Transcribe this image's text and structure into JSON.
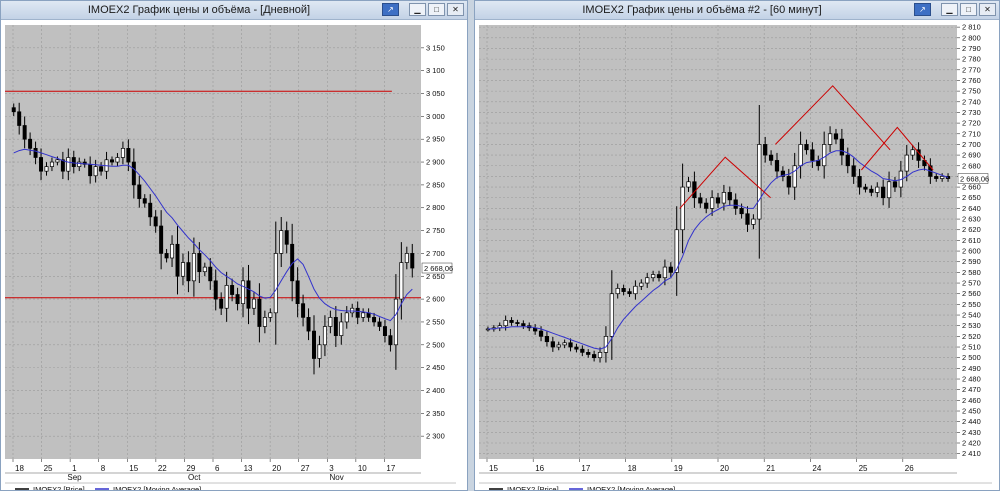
{
  "windows": [
    {
      "title": "IMOEX2 График цены и объёма - [Дневной]",
      "price_label": "2 668,06",
      "legend": [
        {
          "label": "IMOEX2 [Price]",
          "color": "#000000"
        },
        {
          "label": "IMOEX2 [Moving Average]",
          "color": "#3333cc"
        }
      ],
      "x_labels": [
        "18",
        "25",
        "1",
        "8",
        "15",
        "22",
        "29",
        "6",
        "13",
        "20",
        "27",
        "3",
        "10",
        "17"
      ],
      "month_labels": [
        "Sep",
        "Oct",
        "Nov"
      ]
    },
    {
      "title": "IMOEX2 График цены и объёма #2 - [60 минут]",
      "price_label": "2 668,06",
      "legend": [
        {
          "label": "IMOEX2 [Price]",
          "color": "#000000"
        },
        {
          "label": "IMOEX2 [Moving Average]",
          "color": "#3333cc"
        }
      ],
      "x_labels": [
        "15",
        "16",
        "17",
        "18",
        "19",
        "20",
        "21",
        "24",
        "25",
        "26"
      ]
    }
  ],
  "chart_data": [
    {
      "type": "candlestick",
      "timeframe": "Дневной",
      "ylim": [
        2250,
        3200
      ],
      "y_ticks": [
        "2 300",
        "2 350",
        "2 400",
        "2 450",
        "2 500",
        "2 550",
        "2 600",
        "2 650",
        "2 700",
        "2 750",
        "2 800",
        "2 850",
        "2 900",
        "2 950",
        "3 000",
        "3 050",
        "3 100",
        "3 150"
      ],
      "horizontal_lines": [
        {
          "value": 3055,
          "color": "#cc0000"
        },
        {
          "value": 2603,
          "color": "#cc0000"
        }
      ],
      "last_price": 2668.06,
      "series": [
        {
          "name": "IMOEX2 [Price]",
          "close": [
            3010,
            2980,
            2950,
            2930,
            2910,
            2880,
            2890,
            2900,
            2905,
            2880,
            2910,
            2890,
            2900,
            2895,
            2870,
            2890,
            2880,
            2905,
            2900,
            2910,
            2930,
            2900,
            2850,
            2820,
            2810,
            2780,
            2760,
            2700,
            2690,
            2720,
            2650,
            2680,
            2640,
            2700,
            2660,
            2670,
            2640,
            2600,
            2580,
            2630,
            2610,
            2590,
            2640,
            2580,
            2600,
            2540,
            2560,
            2570,
            2700,
            2750,
            2720,
            2640,
            2590,
            2560,
            2530,
            2470,
            2500,
            2540,
            2560,
            2520,
            2550,
            2570,
            2580,
            2560,
            2570,
            2560,
            2550,
            2540,
            2520,
            2500,
            2600,
            2680,
            2700,
            2668
          ]
        },
        {
          "name": "IMOEX2 [Moving Average]",
          "values": [
            2920,
            2925,
            2928,
            2926,
            2924,
            2920,
            2916,
            2912,
            2908,
            2903,
            2900,
            2898,
            2897,
            2896,
            2895,
            2894,
            2893,
            2892,
            2891,
            2891,
            2893,
            2893,
            2885,
            2872,
            2858,
            2842,
            2826,
            2808,
            2790,
            2778,
            2762,
            2748,
            2734,
            2722,
            2708,
            2697,
            2684,
            2670,
            2658,
            2650,
            2642,
            2633,
            2628,
            2622,
            2616,
            2607,
            2602,
            2604,
            2620,
            2640,
            2660,
            2678,
            2688,
            2676,
            2650,
            2622,
            2602,
            2590,
            2582,
            2577,
            2575,
            2574,
            2574,
            2573,
            2572,
            2570,
            2567,
            2562,
            2557,
            2553,
            2566,
            2590,
            2610,
            2622
          ]
        }
      ]
    },
    {
      "type": "candlestick",
      "timeframe": "60 минут",
      "ylim": [
        2405,
        2812
      ],
      "y_ticks": [
        "2 410",
        "2 420",
        "2 430",
        "2 440",
        "2 450",
        "2 460",
        "2 470",
        "2 480",
        "2 490",
        "2 500",
        "2 510",
        "2 520",
        "2 530",
        "2 540",
        "2 550",
        "2 560",
        "2 570",
        "2 580",
        "2 590",
        "2 600",
        "2 610",
        "2 620",
        "2 630",
        "2 640",
        "2 650",
        "2 660",
        "2 670",
        "2 680",
        "2 690",
        "2 700",
        "2 710",
        "2 720",
        "2 730",
        "2 740",
        "2 750",
        "2 760",
        "2 770",
        "2 780",
        "2 790",
        "2 800",
        "2 810"
      ],
      "last_price": 2668.06,
      "series": [
        {
          "name": "IMOEX2 [Price]",
          "close": [
            2527,
            2528,
            2530,
            2535,
            2533,
            2532,
            2530,
            2528,
            2525,
            2520,
            2515,
            2510,
            2512,
            2514,
            2510,
            2508,
            2505,
            2503,
            2500,
            2505,
            2520,
            2560,
            2565,
            2562,
            2560,
            2567,
            2570,
            2575,
            2578,
            2575,
            2585,
            2580,
            2620,
            2660,
            2665,
            2650,
            2645,
            2640,
            2650,
            2645,
            2655,
            2648,
            2640,
            2635,
            2625,
            2630,
            2700,
            2690,
            2685,
            2675,
            2670,
            2660,
            2680,
            2700,
            2695,
            2685,
            2680,
            2700,
            2710,
            2705,
            2690,
            2680,
            2670,
            2660,
            2658,
            2655,
            2660,
            2650,
            2665,
            2660,
            2675,
            2690,
            2695,
            2685,
            2680,
            2670,
            2668,
            2670,
            2668
          ]
        },
        {
          "name": "IMOEX2 [Moving Average]",
          "values": [
            2527,
            2527,
            2528,
            2528,
            2529,
            2529,
            2529,
            2529,
            2528,
            2527,
            2525,
            2523,
            2521,
            2519,
            2517,
            2515,
            2513,
            2511,
            2509,
            2508,
            2510,
            2518,
            2528,
            2536,
            2542,
            2548,
            2553,
            2558,
            2563,
            2567,
            2572,
            2575,
            2583,
            2595,
            2610,
            2620,
            2627,
            2632,
            2636,
            2639,
            2642,
            2643,
            2643,
            2642,
            2640,
            2640,
            2648,
            2657,
            2664,
            2669,
            2671,
            2672,
            2675,
            2680,
            2683,
            2684,
            2685,
            2688,
            2692,
            2694,
            2694,
            2692,
            2688,
            2683,
            2679,
            2675,
            2672,
            2668,
            2667,
            2666,
            2667,
            2670,
            2674,
            2676,
            2677,
            2675,
            2673,
            2671,
            2669
          ]
        }
      ],
      "annotations": [
        {
          "type": "double-top",
          "color": "#cc0000",
          "values": [
            2640,
            2688,
            2650
          ]
        },
        {
          "type": "double-top",
          "color": "#cc0000",
          "values": [
            2700,
            2755,
            2695
          ]
        },
        {
          "type": "double-top",
          "color": "#cc0000",
          "values": [
            2676,
            2716,
            2676
          ]
        }
      ]
    }
  ]
}
